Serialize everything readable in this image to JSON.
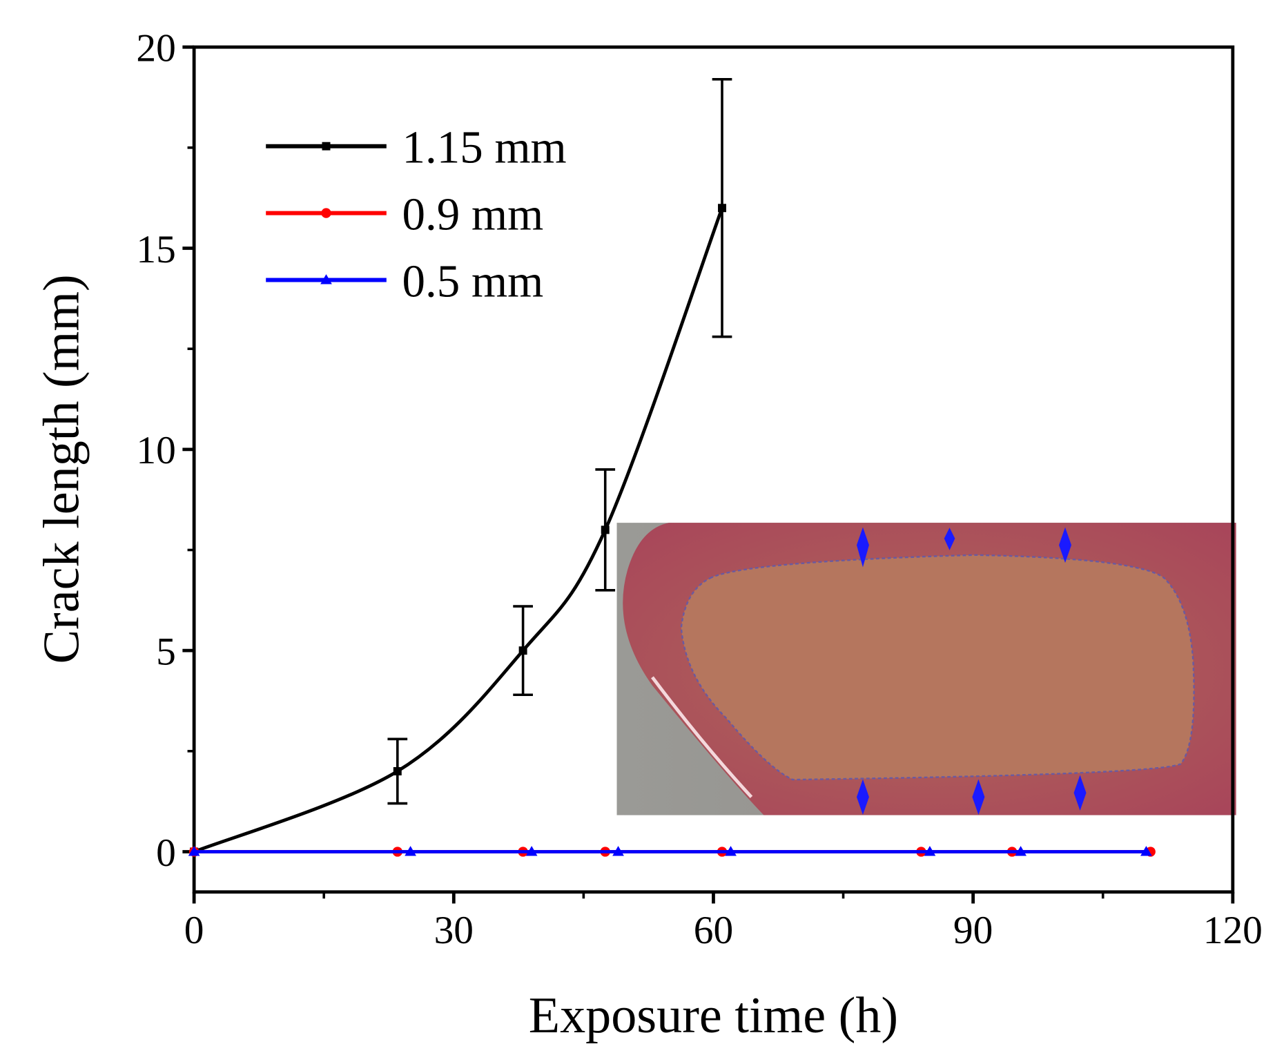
{
  "chart_data": {
    "type": "line",
    "xlabel": "Exposure time (h)",
    "ylabel": "Crack length (mm)",
    "xlim": [
      0,
      120
    ],
    "ylim": [
      -1,
      20
    ],
    "xticks": [
      0,
      30,
      60,
      90,
      120
    ],
    "yticks": [
      0,
      5,
      10,
      15,
      20
    ],
    "xminorticks": [
      15,
      45,
      75,
      105
    ],
    "yminorticks": [
      2.5,
      7.5,
      12.5,
      17.5
    ],
    "legend": "upper left",
    "series": [
      {
        "name": "1.15 mm",
        "color": "#000000",
        "marker": "square",
        "smooth": true,
        "x": [
          0,
          23.5,
          38,
          47.5,
          61
        ],
        "values": [
          0,
          2,
          5,
          8,
          16
        ],
        "errors": [
          0,
          0.8,
          1.1,
          1.5,
          3.2
        ]
      },
      {
        "name": "0.9 mm",
        "color": "#ff0000",
        "marker": "circle",
        "x": [
          0,
          23.5,
          38,
          47.5,
          61,
          84,
          94.5,
          110.5
        ],
        "values": [
          0,
          0,
          0,
          0,
          0,
          0,
          0,
          0
        ]
      },
      {
        "name": "0.5 mm",
        "color": "#0000ff",
        "marker": "triangle",
        "x": [
          0,
          25,
          39,
          49,
          62,
          85,
          95.5,
          110
        ],
        "values": [
          0,
          0,
          0,
          0,
          0,
          0,
          0,
          0
        ]
      }
    ]
  }
}
